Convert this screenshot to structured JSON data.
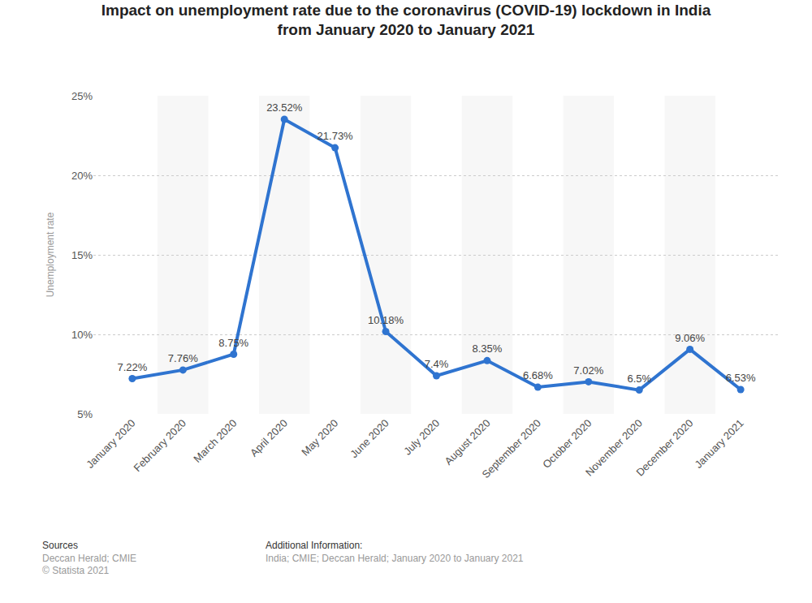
{
  "chart_data": {
    "type": "line",
    "title": "Impact on unemployment rate due to the coronavirus (COVID-19) lockdown in India\nfrom January 2020 to January 2021",
    "y_label": "Unemployment rate",
    "categories": [
      "January 2020",
      "February 2020",
      "March 2020",
      "April 2020",
      "May 2020",
      "June 2020",
      "July 2020",
      "August 2020",
      "September 2020",
      "October 2020",
      "November 2020",
      "December 2020",
      "January 2021"
    ],
    "values": [
      7.22,
      7.76,
      8.75,
      23.52,
      21.73,
      10.18,
      7.4,
      8.35,
      6.68,
      7.02,
      6.5,
      9.06,
      6.53
    ],
    "value_labels": [
      "7.22%",
      "7.76%",
      "8.75%",
      "23.52%",
      "21.73%",
      "10.18%",
      "7.4%",
      "8.35%",
      "6.68%",
      "7.02%",
      "6.5%",
      "9.06%",
      "6.53%"
    ],
    "color": "#2f74d0",
    "marker": "circle",
    "ylim": [
      5,
      25
    ],
    "yticks": [
      {
        "value": 5,
        "label": "5%"
      },
      {
        "value": 10,
        "label": "10%"
      },
      {
        "value": 15,
        "label": "15%"
      },
      {
        "value": 20,
        "label": "20%"
      },
      {
        "value": 25,
        "label": "25%"
      }
    ],
    "grid": true,
    "data_labels": true,
    "annotations": [
      "Sources",
      "Deccan Herald; CMIE",
      "© Statista 2021",
      "Additional Information:",
      "India; CMIE; Deccan Herald; January 2020 to January 2021"
    ]
  }
}
